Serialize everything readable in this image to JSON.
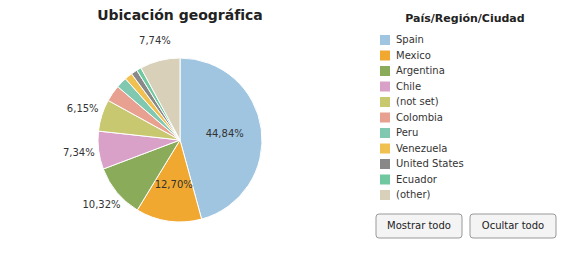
{
  "chart_data": {
    "type": "pie",
    "title": "Ubicación geográfica",
    "legend_title": "País/Región/Ciudad",
    "categories": [
      "Spain",
      "Mexico",
      "Argentina",
      "Chile",
      "(not set)",
      "Colombia",
      "Peru",
      "Venezuela",
      "United States",
      "Ecuador",
      "(other)"
    ],
    "values": [
      44.84,
      12.7,
      10.32,
      7.34,
      6.15,
      3.2,
      2.1,
      1.5,
      1.2,
      0.91,
      7.74
    ],
    "value_labels": [
      "44,84%",
      "12,70%",
      "10,32%",
      "7,34%",
      "6,15%",
      null,
      null,
      null,
      null,
      null,
      "7,74%"
    ],
    "colors": [
      "#9fc5e0",
      "#f0a830",
      "#8aab5a",
      "#d9a0c8",
      "#c8c870",
      "#e8a090",
      "#80c8b0",
      "#f0c050",
      "#888888",
      "#70c8a0",
      "#d8d0b8"
    ],
    "data_labels": true,
    "legend": "right",
    "annotations": [
      "Mostrar todo",
      "Ocultar todo"
    ]
  }
}
